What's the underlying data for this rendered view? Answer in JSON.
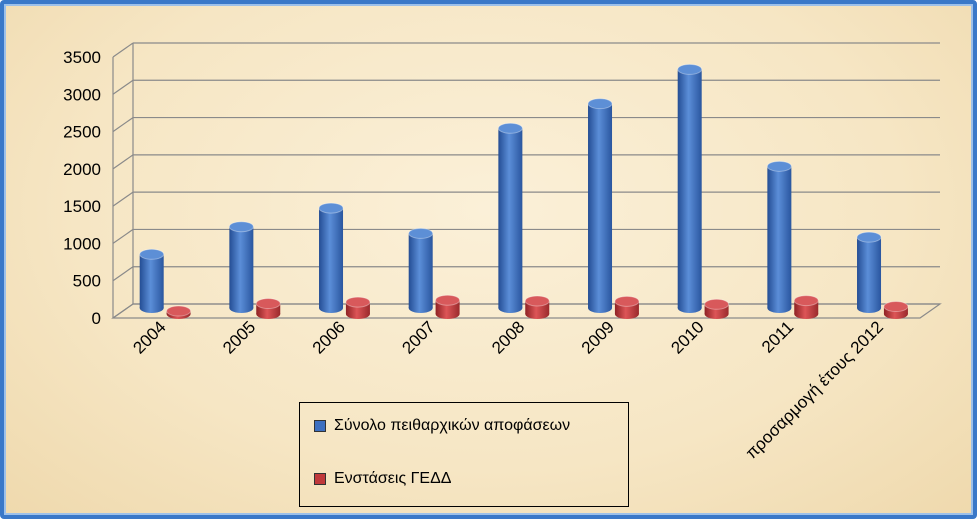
{
  "chart_data": {
    "type": "bar",
    "categories": [
      "2004",
      "2005",
      "2006",
      "2007",
      "2008",
      "2009",
      "2010",
      "2011",
      "προσαρμογή έτους 2012"
    ],
    "series": [
      {
        "name": "Σύνολο πειθαρχικών αποφάσεων",
        "color": "#3d6fc0",
        "values": [
          720,
          1090,
          1340,
          1000,
          2410,
          2740,
          3200,
          1900,
          950
        ]
      },
      {
        "name": "Ενστάσεις ΓΕΔΔ",
        "color": "#c0393b",
        "values": [
          40,
          140,
          160,
          185,
          175,
          170,
          130,
          180,
          100
        ]
      }
    ],
    "ylim": [
      0,
      3500
    ],
    "yticks": [
      0,
      500,
      1000,
      1500,
      2000,
      2500,
      3000,
      3500
    ],
    "grid": true,
    "legend": "bottom-center"
  }
}
